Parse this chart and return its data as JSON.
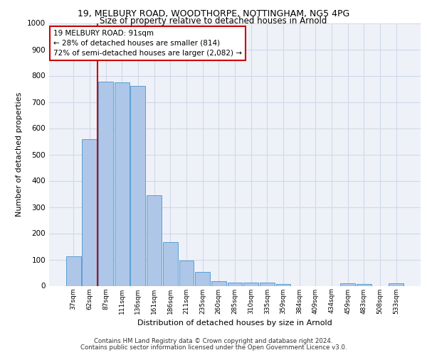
{
  "title_line1": "19, MELBURY ROAD, WOODTHORPE, NOTTINGHAM, NG5 4PG",
  "title_line2": "Size of property relative to detached houses in Arnold",
  "xlabel": "Distribution of detached houses by size in Arnold",
  "ylabel": "Number of detached properties",
  "categories": [
    "37sqm",
    "62sqm",
    "87sqm",
    "111sqm",
    "136sqm",
    "161sqm",
    "186sqm",
    "211sqm",
    "235sqm",
    "260sqm",
    "285sqm",
    "310sqm",
    "335sqm",
    "359sqm",
    "384sqm",
    "409sqm",
    "434sqm",
    "459sqm",
    "483sqm",
    "508sqm",
    "533sqm"
  ],
  "values": [
    113,
    557,
    778,
    773,
    762,
    345,
    165,
    97,
    53,
    18,
    12,
    12,
    12,
    8,
    0,
    0,
    0,
    10,
    8,
    0,
    10
  ],
  "bar_color": "#aec6e8",
  "bar_edge_color": "#5a9fd4",
  "grid_color": "#d0d8e8",
  "background_color": "#eef2f8",
  "vline_color": "#cc0000",
  "vline_x_index": 2,
  "annotation_text": "19 MELBURY ROAD: 91sqm\n← 28% of detached houses are smaller (814)\n72% of semi-detached houses are larger (2,082) →",
  "annotation_box_color": "#cc0000",
  "ylim": [
    0,
    1000
  ],
  "yticks": [
    0,
    100,
    200,
    300,
    400,
    500,
    600,
    700,
    800,
    900,
    1000
  ],
  "footer_line1": "Contains HM Land Registry data © Crown copyright and database right 2024.",
  "footer_line2": "Contains public sector information licensed under the Open Government Licence v3.0."
}
